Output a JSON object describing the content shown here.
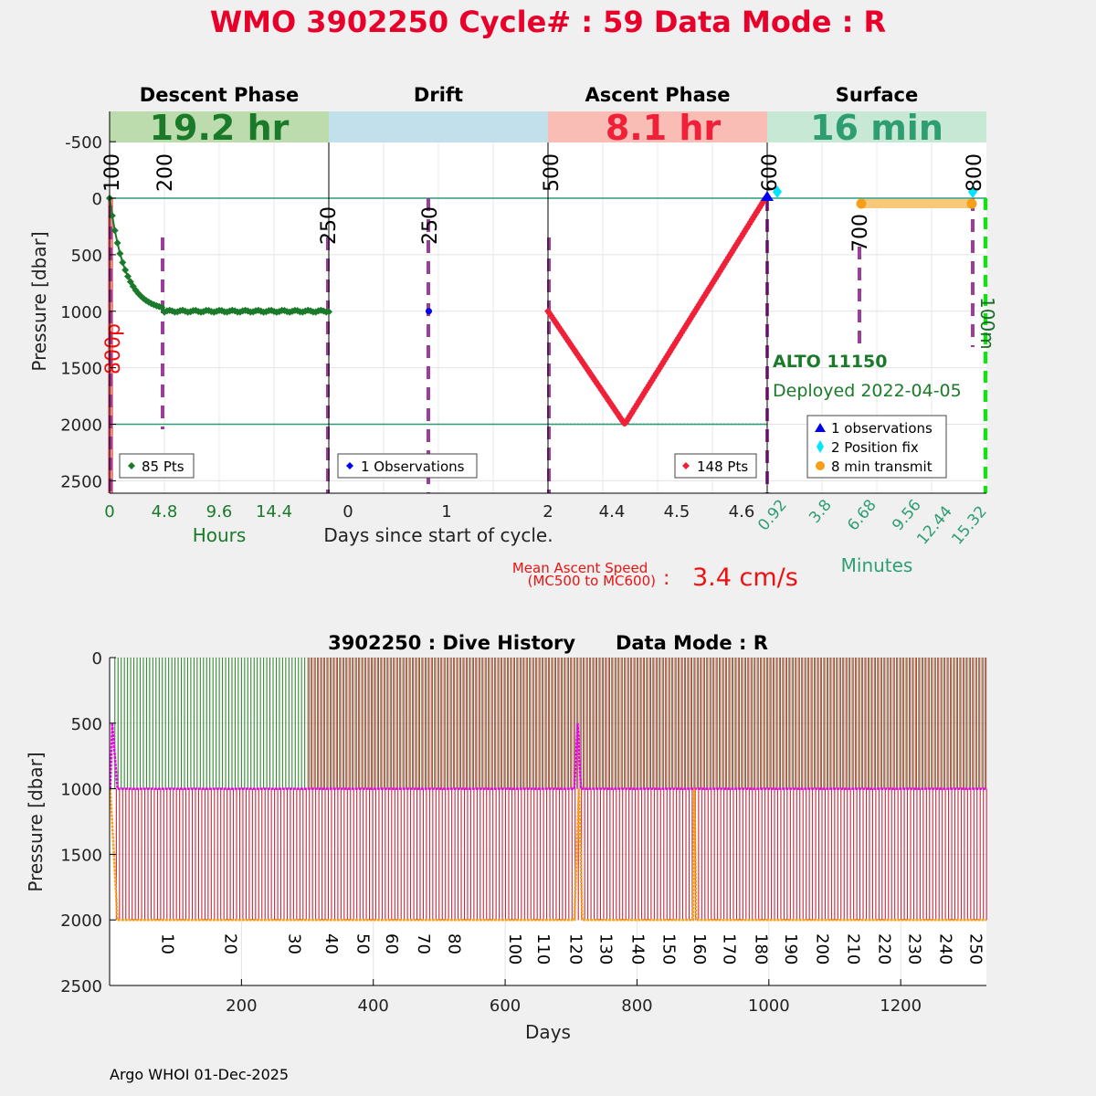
{
  "title": "WMO 3902250   Cycle# : 59   Data Mode : R",
  "colors": {
    "title": "#e8002a",
    "descent": "#1a7a2a",
    "descent_band": "#bcdcae",
    "drift_band": "#c2e0ec",
    "ascent": "#ef2038",
    "ascent_band": "#f9bdb6",
    "surface": "#2e9e72",
    "surface_band": "#c8e8d6",
    "marker_line": "#9b3d9b",
    "ref_line": "#2e9a7a",
    "drift_point": "#0000ee",
    "position_fix": "#00e5ff",
    "transmit": "#f6a01a",
    "transmit_bar": "#f8c87a",
    "green_dash": "#00ee00",
    "magenta": "#ee00ee",
    "bg": "#f0f0f0"
  },
  "top_chart": {
    "ylabel": "Pressure [dbar]",
    "yticks": [
      "-500",
      "0",
      "500",
      "1000",
      "1500",
      "2000",
      "2500"
    ],
    "ylim": [
      -750,
      2600
    ],
    "xlabel": "Days since start of cycle.",
    "ascent_speed_label": "Mean Ascent Speed\n(MC500 to MC600)",
    "ascent_speed_colon": ":",
    "ascent_speed_value": "3.4 cm/s",
    "ref_depths": [
      0,
      2000
    ],
    "panels": [
      {
        "key": "descent",
        "title": "Descent Phase",
        "duration": "19.2 hr",
        "axis_label": "Hours",
        "xticks": [
          "0",
          "4.8",
          "9.6",
          "14.4"
        ],
        "legend": "85 Pts",
        "mc_labels": [
          "100",
          "200",
          "250"
        ],
        "side_label": "800p"
      },
      {
        "key": "drift",
        "title": "Drift",
        "duration": "",
        "xticks": [
          "0",
          "1"
        ],
        "legend": "1 Observations",
        "mc_labels": [
          "250"
        ],
        "drift_point": {
          "day": 0.73,
          "pressure": 1000
        }
      },
      {
        "key": "ascent",
        "title": "Ascent Phase",
        "duration": "8.1 hr",
        "xticks": [
          "2",
          "4.4",
          "4.5",
          "4.6"
        ],
        "legend": "148 Pts",
        "mc_labels": [
          "500",
          "600"
        ],
        "profile": {
          "start_pressure": 1000,
          "bottom_pressure": 2000,
          "end_pressure": 0
        }
      },
      {
        "key": "surface",
        "title": "Surface",
        "duration": "16 min",
        "axis_label": "Minutes",
        "xticks": [
          "0.92",
          "3.8",
          "6.68",
          "9.56",
          "12.44",
          "15.32"
        ],
        "mc_labels": [
          "700",
          "800",
          "100m"
        ],
        "float_name": "ALTO 11150",
        "deployed": "Deployed 2022-04-05",
        "legend_items": [
          {
            "symbol": "triangle",
            "label": "1 observations"
          },
          {
            "symbol": "diamond",
            "label": "2 Position fix"
          },
          {
            "symbol": "circle",
            "label": "8 min transmit"
          }
        ]
      }
    ]
  },
  "bottom_chart": {
    "title": "3902250 : Dive History      Data Mode : R",
    "ylabel": "Pressure [dbar]",
    "xlabel": "Days",
    "xticks": [
      200,
      400,
      600,
      800,
      1000,
      1200
    ],
    "yticks": [
      0,
      500,
      1000,
      1500,
      2000,
      2500
    ],
    "xlim": [
      0,
      1330
    ],
    "ylim": [
      0,
      2500
    ],
    "drift_pressure": 1000,
    "profile_pressure": 2000,
    "cycle_labels": [
      {
        "label": "10",
        "day": 80
      },
      {
        "label": "20",
        "day": 175
      },
      {
        "label": "30",
        "day": 272
      },
      {
        "label": "40",
        "day": 328
      },
      {
        "label": "50",
        "day": 376
      },
      {
        "label": "60",
        "day": 420
      },
      {
        "label": "70",
        "day": 468
      },
      {
        "label": "80",
        "day": 515
      },
      {
        "label": "100",
        "day": 607
      },
      {
        "label": "110",
        "day": 650
      },
      {
        "label": "120",
        "day": 699
      },
      {
        "label": "130",
        "day": 745
      },
      {
        "label": "140",
        "day": 793
      },
      {
        "label": "150",
        "day": 840
      },
      {
        "label": "160",
        "day": 887
      },
      {
        "label": "170",
        "day": 932
      },
      {
        "label": "180",
        "day": 980
      },
      {
        "label": "190",
        "day": 1025
      },
      {
        "label": "200",
        "day": 1073
      },
      {
        "label": "210",
        "day": 1120
      },
      {
        "label": "220",
        "day": 1167
      },
      {
        "label": "230",
        "day": 1213
      },
      {
        "label": "240",
        "day": 1260
      },
      {
        "label": "250",
        "day": 1306
      }
    ]
  },
  "footer": "Argo WHOI 01-Dec-2025"
}
